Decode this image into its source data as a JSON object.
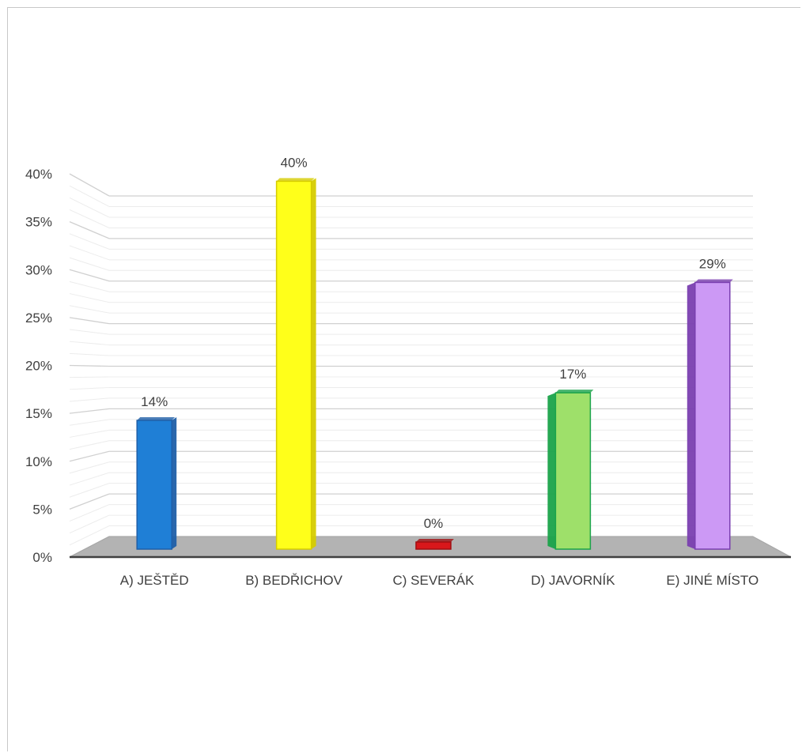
{
  "chart_data": {
    "type": "bar",
    "style": "3d-column",
    "categories": [
      "A) JEŠTĚD",
      "B) BEDŘICHOV",
      "C) SEVERÁK",
      "D) JAVORNÍK",
      "E) JINÉ MÍSTO"
    ],
    "values": [
      14,
      40,
      0,
      17,
      29
    ],
    "data_labels": [
      "14%",
      "40%",
      "0%",
      "17%",
      "29%"
    ],
    "colors": [
      "#1f7fd6",
      "#ffff1a",
      "#d9171b",
      "#9ee06a",
      "#cc99f5"
    ],
    "edge_colors": [
      "#1f5fa8",
      "#d6cc00",
      "#a00f12",
      "#1aa34a",
      "#7a3fb0"
    ],
    "ylim": [
      0,
      40
    ],
    "y_ticks": [
      0,
      5,
      10,
      15,
      20,
      25,
      30,
      35,
      40
    ],
    "y_tick_labels": [
      "0%",
      "5%",
      "10%",
      "15%",
      "20%",
      "25%",
      "30%",
      "35%",
      "40%"
    ],
    "grid": true,
    "legend": "none",
    "title": "",
    "xlabel": "",
    "ylabel": ""
  }
}
